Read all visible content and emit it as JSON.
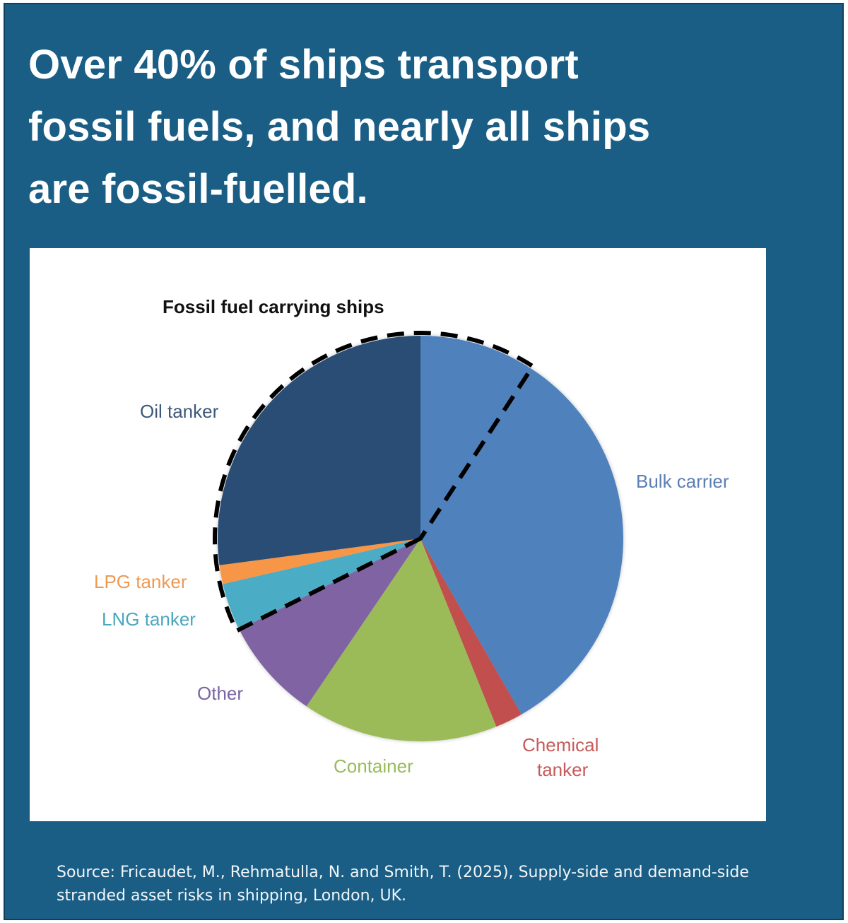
{
  "headline": {
    "line1": "Over 40% of ships transport",
    "line2": "fossil fuels, and nearly all ships",
    "line3": "are fossil-fuelled."
  },
  "colors": {
    "background": "#1a5e86",
    "bulk_carrier": "#4f81bd",
    "chemical_tanker": "#c0504d",
    "container": "#9bbb59",
    "other": "#8064a2",
    "lng_tanker": "#4bacc6",
    "lpg_tanker": "#f79646",
    "oil_tanker": "#2c4d75"
  },
  "source": {
    "line1": "Source: Fricaudet, M., Rehmatulla, N. and Smith, T. (2025), Supply-side and demand-side",
    "line2": "stranded asset risks in shipping, London, UK."
  },
  "chart_data": {
    "type": "pie",
    "title": "Fossil fuel carrying ships",
    "start_angle_deg": 0,
    "direction": "clockwise",
    "categories": [
      "Bulk carrier",
      "Chemical tanker",
      "Container",
      "Other",
      "LNG tanker",
      "LPG tanker",
      "Oil tanker"
    ],
    "values": [
      41.7,
      2.2,
      15.6,
      8.1,
      3.8,
      1.5,
      27.1
    ],
    "unit": "% of ships (estimated from slice angles)",
    "annotations": [
      {
        "type": "dashed-outline",
        "label": "Fossil fuel carrying ships",
        "covers": [
          "Oil tanker",
          "LPG tanker",
          "LNG tanker",
          "Bulk carrier (portion ≈ 9.2%)"
        ],
        "total_estimate": 41.6
      }
    ],
    "labels": {
      "bulk_carrier": "Bulk carrier",
      "chemical_tanker_1": "Chemical",
      "chemical_tanker_2": "tanker",
      "container": "Container",
      "other": "Other",
      "lng_tanker": "LNG tanker",
      "lpg_tanker": "LPG tanker",
      "oil_tanker": "Oil tanker"
    },
    "legend": "none (direct slice labels)"
  }
}
